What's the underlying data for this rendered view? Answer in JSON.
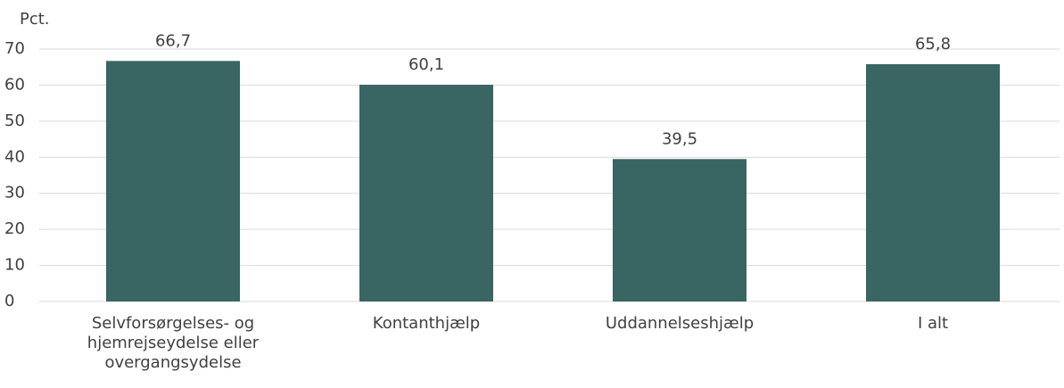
{
  "chart_data": {
    "type": "bar",
    "y_label": "Pct.",
    "categories": [
      "Selvforsørgelses- og hjemrejseydelse eller overgangsydelse",
      "Kontanthjælp",
      "Uddannelseshjælp",
      "I alt"
    ],
    "values": [
      66.7,
      60.1,
      39.5,
      65.8
    ],
    "value_labels": [
      "66,7",
      "60,1",
      "39,5",
      "65,8"
    ],
    "color": "#396563",
    "ylim": [
      0,
      70
    ],
    "yticks": [
      0,
      10,
      20,
      30,
      40,
      50,
      60,
      70
    ],
    "grid": true
  }
}
